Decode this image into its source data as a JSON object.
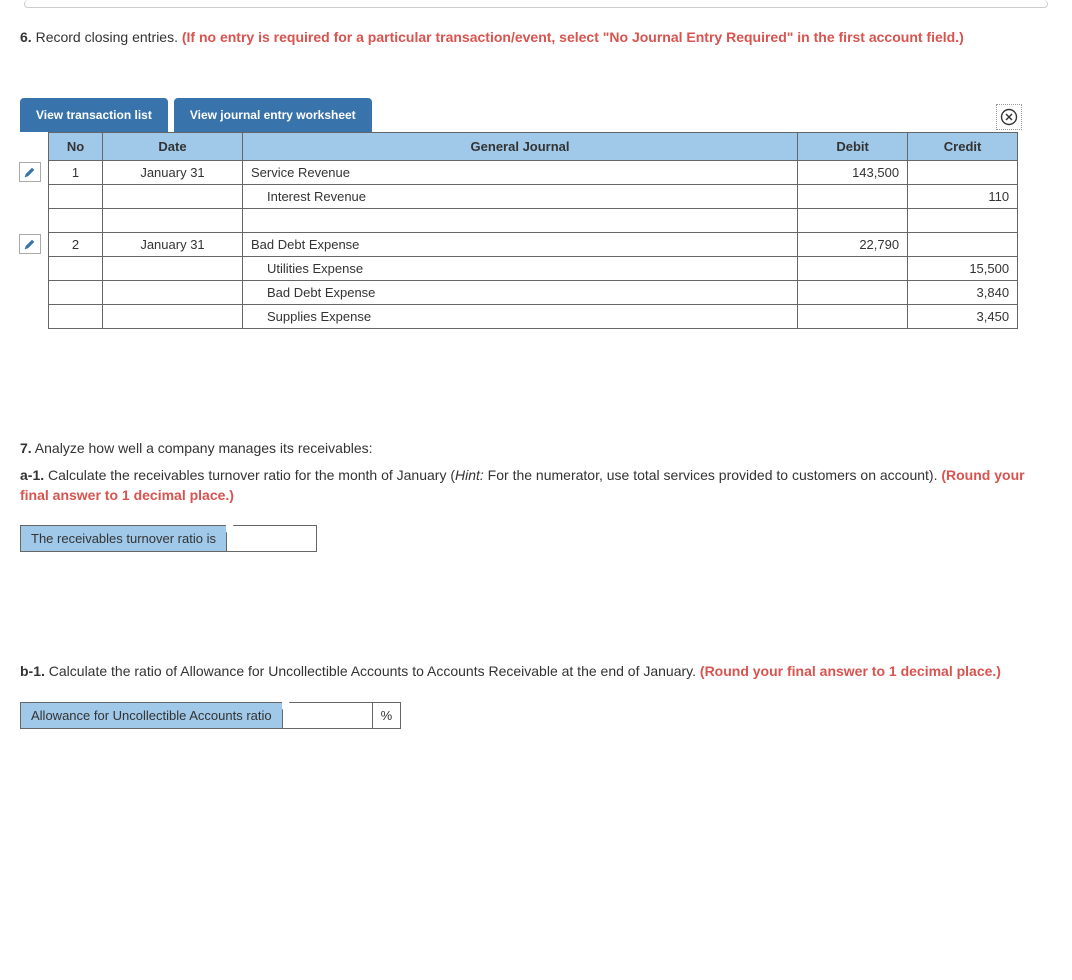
{
  "q6": {
    "num": "6.",
    "lead": " Record closing entries. ",
    "red": "(If no entry is required for a particular transaction/event, select \"No Journal Entry Required\" in the first account field.)"
  },
  "tabs": {
    "t1": "View transaction list",
    "t2": "View journal entry worksheet"
  },
  "headers": {
    "no": "No",
    "date": "Date",
    "gj": "General Journal",
    "debit": "Debit",
    "credit": "Credit"
  },
  "rows": [
    {
      "edit": true,
      "no": "1",
      "date": "January 31",
      "gj": "Service Revenue",
      "indent": false,
      "debit": "143,500",
      "credit": ""
    },
    {
      "edit": false,
      "no": "",
      "date": "",
      "gj": "Interest Revenue",
      "indent": true,
      "debit": "",
      "credit": "110"
    },
    {
      "edit": false,
      "no": "",
      "date": "",
      "gj": "",
      "indent": false,
      "debit": "",
      "credit": ""
    },
    {
      "edit": true,
      "no": "2",
      "date": "January 31",
      "gj": "Bad Debt Expense",
      "indent": false,
      "debit": "22,790",
      "credit": ""
    },
    {
      "edit": false,
      "no": "",
      "date": "",
      "gj": "Utilities Expense",
      "indent": true,
      "debit": "",
      "credit": "15,500"
    },
    {
      "edit": false,
      "no": "",
      "date": "",
      "gj": "Bad Debt Expense",
      "indent": true,
      "debit": "",
      "credit": "3,840"
    },
    {
      "edit": false,
      "no": "",
      "date": "",
      "gj": "Supplies Expense",
      "indent": true,
      "debit": "",
      "credit": "3,450"
    }
  ],
  "q7": {
    "num": "7.",
    "text": " Analyze how well a company manages its receivables:"
  },
  "a1": {
    "label": "a-1.",
    "pre": " Calculate the receivables turnover ratio for the month of January (",
    "hint": "Hint:",
    "post": " For the numerator, use total services provided to customers on account). ",
    "round": "(Round your final answer to 1 decimal place.)",
    "answer_label": "The receivables turnover ratio is"
  },
  "b1": {
    "label": "b-1.",
    "text": " Calculate the ratio of Allowance for Uncollectible Accounts to Accounts Receivable at the end of January. ",
    "round": "(Round your final answer to 1 decimal place.)",
    "answer_label": "Allowance for Uncollectible Accounts ratio",
    "unit": "%"
  }
}
